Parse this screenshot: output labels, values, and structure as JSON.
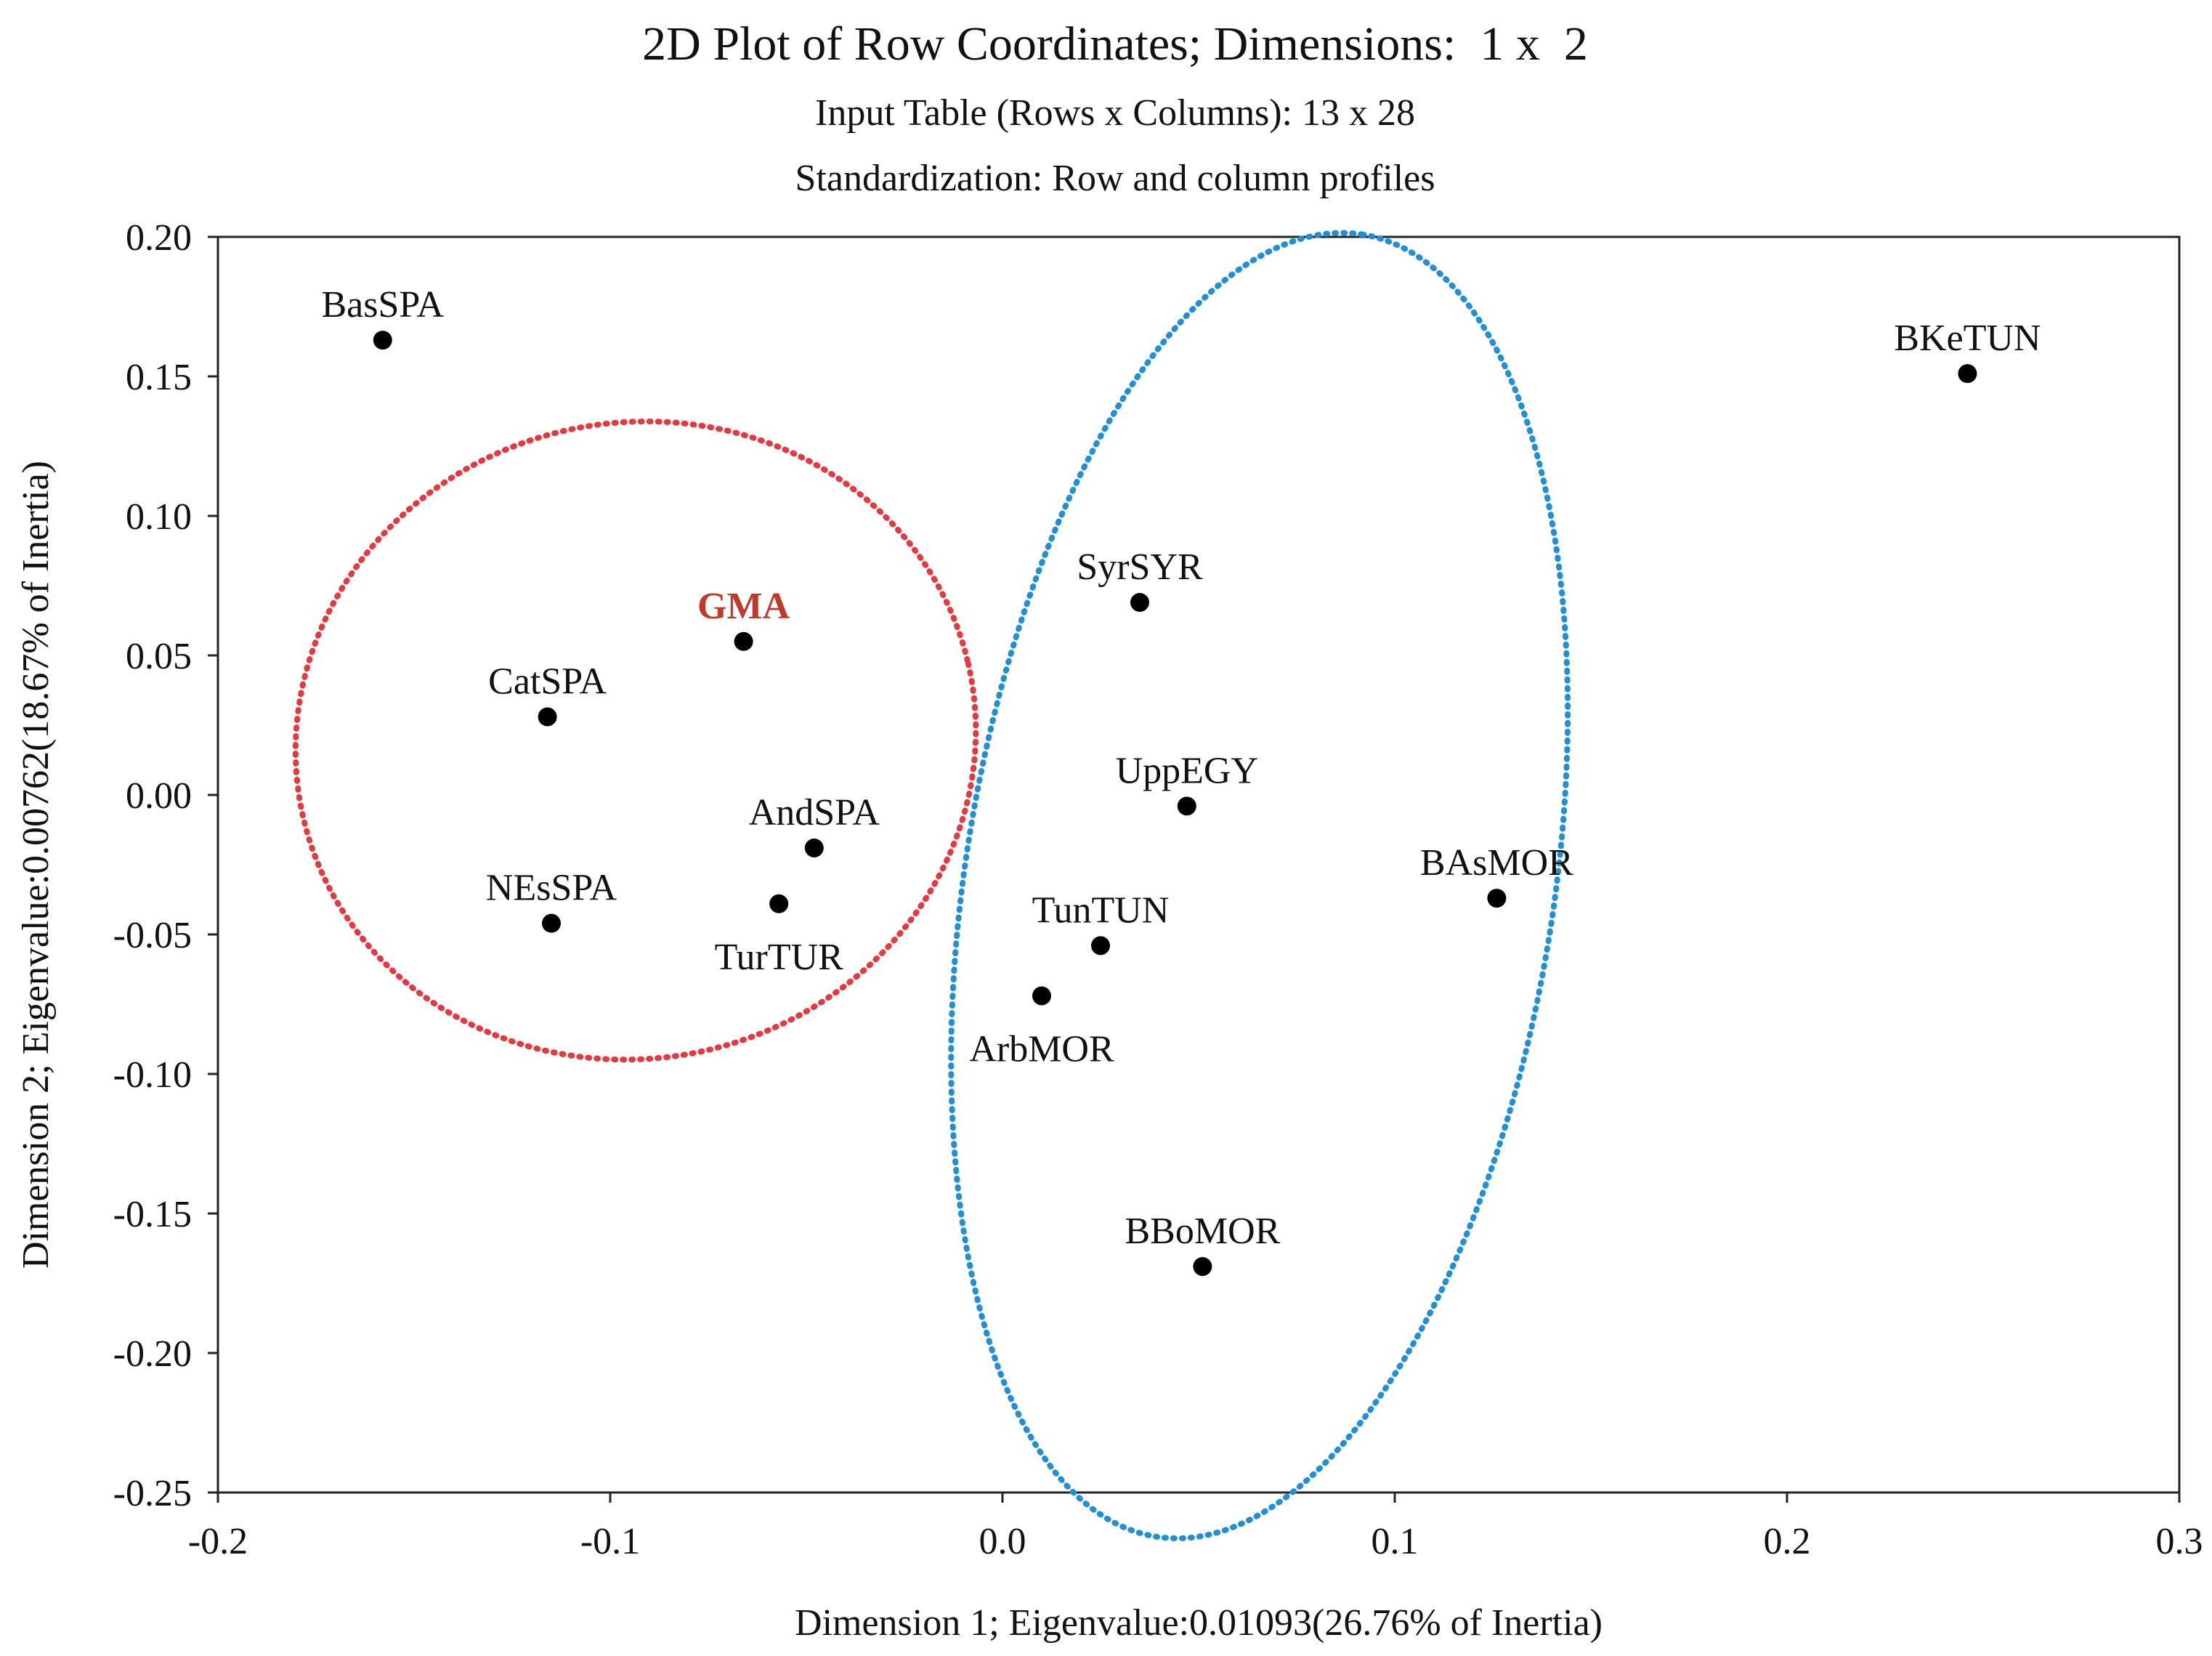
{
  "colors": {
    "points": "#000000",
    "highlight": "#c0392b",
    "red_ellipse": "#e8383f",
    "blue_ellipse": "#1f8fd6"
  },
  "chart_data": {
    "type": "scatter",
    "title": "2D Plot of Row Coordinates; Dimensions:  1 x  2",
    "subtitle_1": "Input Table (Rows x Columns): 13 x 28",
    "subtitle_2": "Standardization: Row and column profiles",
    "xlabel": "Dimension 1; Eigenvalue:0.01093(26.76% of Inertia)",
    "ylabel": "Dimension 2; Eigenvalue:0.00762(18.67% of Inertia)",
    "xlim": [
      -0.2,
      0.3
    ],
    "ylim": [
      -0.25,
      0.2
    ],
    "x_ticks": [
      -0.2,
      -0.1,
      0.0,
      0.1,
      0.2,
      0.3
    ],
    "x_tick_labels": [
      "-0.2",
      "-0.1",
      "0.0",
      "0.1",
      "0.2",
      "0.3"
    ],
    "y_ticks": [
      0.2,
      0.15,
      0.1,
      0.05,
      0.0,
      -0.05,
      -0.1,
      -0.15,
      -0.2,
      -0.25
    ],
    "y_tick_labels": [
      "0.20",
      "0.15",
      "0.10",
      "0.05",
      "0.00",
      "-0.05",
      "-0.10",
      "-0.15",
      "-0.20",
      "-0.25"
    ],
    "grid": false,
    "points": [
      {
        "label": "BasSPA",
        "x": -0.158,
        "y": 0.163,
        "label_pos": "above",
        "highlight": false
      },
      {
        "label": "BKeTUN",
        "x": 0.246,
        "y": 0.151,
        "label_pos": "above",
        "highlight": false
      },
      {
        "label": "GMA",
        "x": -0.066,
        "y": 0.055,
        "label_pos": "above",
        "highlight": true
      },
      {
        "label": "CatSPA",
        "x": -0.116,
        "y": 0.028,
        "label_pos": "above",
        "highlight": false
      },
      {
        "label": "SyrSYR",
        "x": 0.035,
        "y": 0.069,
        "label_pos": "above",
        "highlight": false
      },
      {
        "label": "UppEGY",
        "x": 0.047,
        "y": -0.004,
        "label_pos": "above",
        "highlight": false
      },
      {
        "label": "AndSPA",
        "x": -0.048,
        "y": -0.019,
        "label_pos": "above",
        "highlight": false
      },
      {
        "label": "NEsSPA",
        "x": -0.115,
        "y": -0.046,
        "label_pos": "above",
        "highlight": false
      },
      {
        "label": "TurTUR",
        "x": -0.057,
        "y": -0.039,
        "label_pos": "below",
        "highlight": false
      },
      {
        "label": "BAsMOR",
        "x": 0.126,
        "y": -0.037,
        "label_pos": "above",
        "highlight": false
      },
      {
        "label": "TunTUN",
        "x": 0.025,
        "y": -0.054,
        "label_pos": "above",
        "highlight": false
      },
      {
        "label": "ArbMOR",
        "x": 0.01,
        "y": -0.072,
        "label_pos": "below",
        "highlight": false
      },
      {
        "label": "BBoMOR",
        "x": 0.051,
        "y": -0.169,
        "label_pos": "above",
        "highlight": false
      }
    ],
    "ellipses": [
      {
        "name": "red-cluster",
        "color_key": "red_ellipse",
        "cx": -0.0935,
        "cy": 0.0195,
        "rx": 0.087,
        "ry": 0.081,
        "angle_deg": 13
      },
      {
        "name": "blue-cluster",
        "color_key": "blue_ellipse",
        "cx": 0.0655,
        "cy": -0.0325,
        "rx": 0.168,
        "ry": 0.075,
        "angle_deg": 81
      }
    ]
  }
}
